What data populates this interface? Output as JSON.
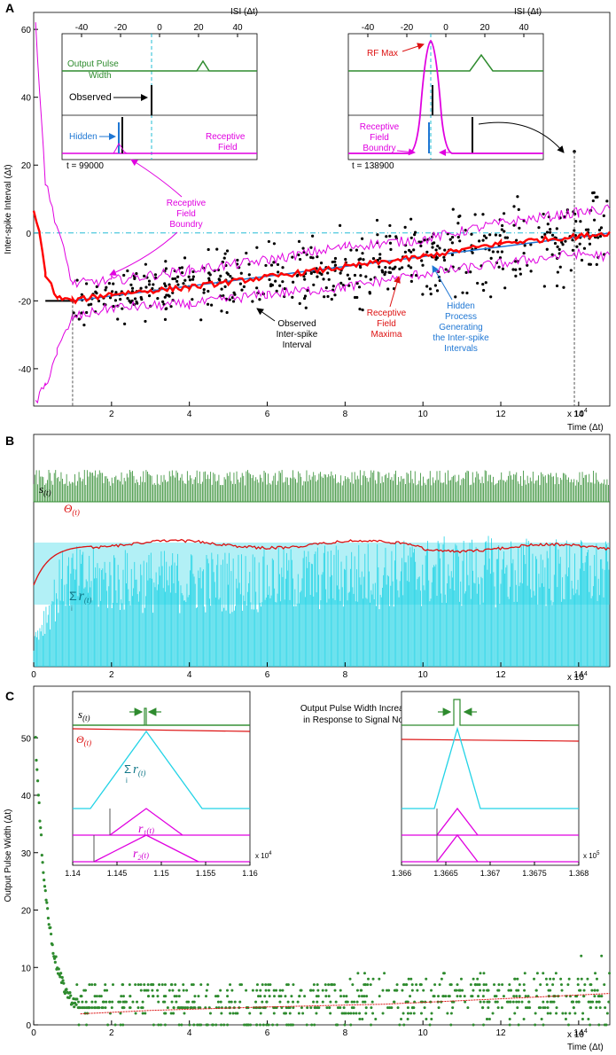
{
  "chart_data": [
    {
      "panel": "A",
      "type": "scatter",
      "panel_label": "A",
      "ylabel": "Inter-spike Interval (Δt)",
      "xlabel": "Time (Δt)",
      "x_multiplier": "x 10^4",
      "x_multiplier_base": "x 10",
      "x_multiplier_exp": "4",
      "xlim": [
        0,
        14.8
      ],
      "ylim": [
        -51,
        65
      ],
      "xticks": [
        2,
        4,
        6,
        8,
        10,
        12,
        14
      ],
      "yticks": [
        -40,
        -20,
        0,
        20,
        40,
        60
      ],
      "markers_x": [
        1.0,
        13.89
      ],
      "series": [
        {
          "name": "Observed Inter-spike Interval",
          "color": "#000000",
          "kind": "scatter",
          "x0": 1.0,
          "x1": 14.8,
          "y0": -20,
          "y1": 0,
          "spread": 6
        },
        {
          "name": "Receptive Field Maxima",
          "color": "#ff0000",
          "kind": "step",
          "points": [
            [
              0,
              6
            ],
            [
              0.15,
              0
            ],
            [
              0.3,
              -12
            ],
            [
              0.6,
              -19
            ],
            [
              1,
              -20
            ],
            [
              2,
              -18
            ],
            [
              4,
              -16
            ],
            [
              6,
              -13
            ],
            [
              8,
              -10
            ],
            [
              10,
              -7
            ],
            [
              12,
              -3
            ],
            [
              14,
              -1
            ],
            [
              14.8,
              0
            ]
          ]
        },
        {
          "name": "Hidden Process Generating the Inter-spike Intervals",
          "color": "#1f77d4",
          "kind": "line",
          "points": [
            [
              1,
              -20
            ],
            [
              14.8,
              0
            ]
          ]
        },
        {
          "name": "Receptive Field Boundry",
          "color": "#e000e0",
          "kind": "band",
          "points": [
            [
              0.05,
              62
            ],
            [
              0.3,
              15
            ],
            [
              0.6,
              2
            ],
            [
              1,
              -15
            ],
            [
              2,
              -14
            ],
            [
              4,
              -11
            ],
            [
              6,
              -8
            ],
            [
              8,
              -4
            ],
            [
              10,
              -2
            ],
            [
              12,
              3
            ],
            [
              14,
              6
            ],
            [
              14.8,
              7
            ]
          ]
        },
        {
          "name": "Receptive Field Boundry (lower)",
          "color": "#e000e0",
          "kind": "band",
          "points": [
            [
              0.05,
              -50
            ],
            [
              0.3,
              -45
            ],
            [
              0.6,
              -35
            ],
            [
              1,
              -25
            ],
            [
              2,
              -22
            ],
            [
              4,
              -21
            ],
            [
              6,
              -18
            ],
            [
              8,
              -16
            ],
            [
              10,
              -12
            ],
            [
              12,
              -9
            ],
            [
              14,
              -6
            ],
            [
              14.8,
              -7
            ]
          ]
        }
      ],
      "annotations": {
        "rf_boundary": [
          "Receptive",
          "Field",
          "Boundry"
        ],
        "observed": [
          "Observed",
          "Inter-spike",
          "Interval"
        ],
        "rf_maxima": [
          "Receptive",
          "Field",
          "Maxima"
        ],
        "hidden": [
          "Hidden",
          "Process",
          "Generating",
          "the Inter-spike",
          "Intervals"
        ]
      },
      "insets": [
        {
          "isi_label": "ISI (Δt)",
          "ticks": [
            -40,
            -20,
            0,
            20,
            40
          ],
          "output_pulse_width": [
            "Output Pulse",
            "Width"
          ],
          "observed": "Observed",
          "hidden": "Hidden",
          "receptive_field": [
            "Receptive",
            "Field"
          ],
          "time": "t = 99000"
        },
        {
          "isi_label": "ISI (Δt)",
          "ticks": [
            -40,
            -20,
            0,
            20,
            40
          ],
          "rf_max": "RF Max",
          "rf_boundary": [
            "Receptive",
            "Field",
            "Boundry"
          ],
          "time": "t = 138900"
        }
      ]
    },
    {
      "panel": "B",
      "type": "line",
      "panel_label": "B",
      "xlim": [
        0,
        14.8
      ],
      "xticks": [
        0,
        2,
        4,
        6,
        8,
        10,
        12,
        14
      ],
      "x_multiplier_base": "x 10",
      "x_multiplier_exp": "4",
      "series": [
        {
          "name": "s(t)",
          "label": "s",
          "sub": "(t)",
          "color": "#2e8b2e"
        },
        {
          "name": "Θ(t)",
          "label": "Θ",
          "sub": "(t)",
          "color": "#dd1111"
        },
        {
          "name": "Σ r(t)",
          "label": "Σ",
          "label2": "r",
          "sub": "(t)",
          "under": "i",
          "color": "#22d3e6"
        }
      ]
    },
    {
      "panel": "C",
      "type": "scatter",
      "panel_label": "C",
      "ylabel": "Output Pulse Width (Δt)",
      "xlabel": "Time (Δt)",
      "x_multiplier_base": "x 10",
      "x_multiplier_exp": "4",
      "xlim": [
        0,
        14.8
      ],
      "ylim": [
        0,
        59
      ],
      "xticks": [
        0,
        2,
        4,
        6,
        8,
        10,
        12,
        14
      ],
      "yticks": [
        0,
        10,
        20,
        30,
        40,
        50
      ],
      "series": [
        {
          "name": "Output Pulse Width",
          "color": "#2e8b2e",
          "kind": "scatter",
          "decay_start": 58,
          "floor": 2
        },
        {
          "name": "Θ(t) trend",
          "color": "#dd1111",
          "kind": "line",
          "points": [
            [
              1.2,
              2
            ],
            [
              3,
              2.5
            ],
            [
              6,
              3
            ],
            [
              9,
              3.6
            ],
            [
              12,
              4.5
            ],
            [
              14.8,
              5.5
            ]
          ]
        }
      ],
      "title_annotation": [
        "Output Pulse Width Increases",
        "in Response to Signal Noise"
      ],
      "insets": [
        {
          "xticks": [
            "1.14",
            "1.145",
            "1.15",
            "1.155",
            "1.16"
          ],
          "x_multiplier_base": "x 10",
          "x_multiplier_exp": "4",
          "labels": {
            "s": "s",
            "theta": "Θ",
            "sum": "Σ",
            "r": "r",
            "r1_sub": "1",
            "r2_sub": "2",
            "t": "(t)",
            "i": "i"
          }
        },
        {
          "xticks": [
            "1.366",
            "1.3665",
            "1.367",
            "1.3675",
            "1.368"
          ],
          "x_multiplier_base": "x 10",
          "x_multiplier_exp": "5"
        }
      ]
    }
  ]
}
